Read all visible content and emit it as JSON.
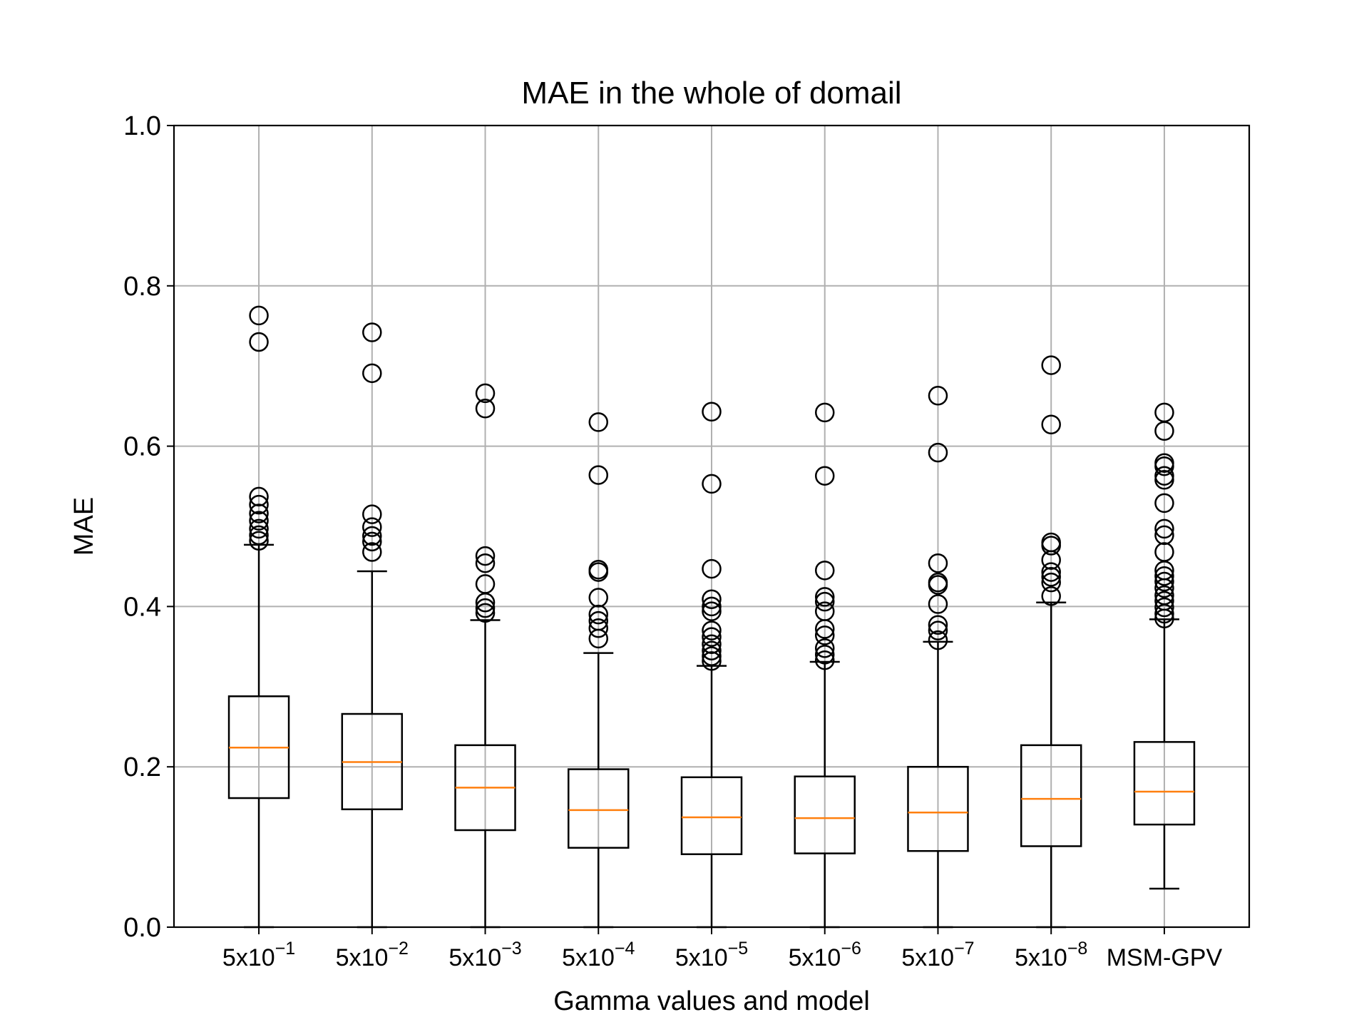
{
  "chart_data": {
    "type": "box",
    "title": "MAE in the whole of domail",
    "xlabel": "Gamma values and model",
    "ylabel": "MAE",
    "ylim": [
      0.0,
      1.0
    ],
    "yticks": [
      "0.0",
      "0.2",
      "0.4",
      "0.6",
      "0.8",
      "1.0"
    ],
    "grid": true,
    "categories": [
      {
        "base": "5x10",
        "sup": "−1"
      },
      {
        "base": "5x10",
        "sup": "−2"
      },
      {
        "base": "5x10",
        "sup": "−3"
      },
      {
        "base": "5x10",
        "sup": "−4"
      },
      {
        "base": "5x10",
        "sup": "−5"
      },
      {
        "base": "5x10",
        "sup": "−6"
      },
      {
        "base": "5x10",
        "sup": "−7"
      },
      {
        "base": "5x10",
        "sup": "−8"
      },
      {
        "base": "MSM-GPV",
        "sup": ""
      }
    ],
    "boxes": [
      {
        "whislo": 0.0,
        "q1": 0.161,
        "median": 0.224,
        "q3": 0.288,
        "whishi": 0.477,
        "fliers": [
          0.763,
          0.73,
          0.537,
          0.527,
          0.516,
          0.507,
          0.497,
          0.489,
          0.482
        ]
      },
      {
        "whislo": 0.0,
        "q1": 0.147,
        "median": 0.206,
        "q3": 0.266,
        "whishi": 0.444,
        "fliers": [
          0.742,
          0.691,
          0.515,
          0.499,
          0.488,
          0.481,
          0.468
        ]
      },
      {
        "whislo": 0.0,
        "q1": 0.121,
        "median": 0.174,
        "q3": 0.227,
        "whishi": 0.383,
        "fliers": [
          0.666,
          0.647,
          0.463,
          0.454,
          0.428,
          0.405,
          0.398,
          0.392
        ]
      },
      {
        "whislo": 0.0,
        "q1": 0.099,
        "median": 0.146,
        "q3": 0.197,
        "whishi": 0.342,
        "fliers": [
          0.63,
          0.564,
          0.446,
          0.443,
          0.411,
          0.39,
          0.382,
          0.373,
          0.36
        ]
      },
      {
        "whislo": 0.0,
        "q1": 0.091,
        "median": 0.137,
        "q3": 0.187,
        "whishi": 0.326,
        "fliers": [
          0.643,
          0.553,
          0.447,
          0.409,
          0.4,
          0.394,
          0.37,
          0.362,
          0.353,
          0.345,
          0.338,
          0.332
        ]
      },
      {
        "whislo": 0.0,
        "q1": 0.092,
        "median": 0.136,
        "q3": 0.188,
        "whishi": 0.331,
        "fliers": [
          0.642,
          0.563,
          0.445,
          0.412,
          0.406,
          0.394,
          0.372,
          0.364,
          0.348,
          0.34,
          0.333
        ]
      },
      {
        "whislo": 0.0,
        "q1": 0.095,
        "median": 0.143,
        "q3": 0.2,
        "whishi": 0.356,
        "fliers": [
          0.663,
          0.592,
          0.454,
          0.43,
          0.427,
          0.403,
          0.377,
          0.37,
          0.358
        ]
      },
      {
        "whislo": 0.0,
        "q1": 0.101,
        "median": 0.16,
        "q3": 0.227,
        "whishi": 0.405,
        "fliers": [
          0.701,
          0.627,
          0.48,
          0.476,
          0.458,
          0.443,
          0.437,
          0.43,
          0.413
        ]
      },
      {
        "whislo": 0.048,
        "q1": 0.128,
        "median": 0.169,
        "q3": 0.231,
        "whishi": 0.384,
        "fliers": [
          0.642,
          0.619,
          0.579,
          0.575,
          0.563,
          0.558,
          0.529,
          0.497,
          0.489,
          0.468,
          0.445,
          0.438,
          0.431,
          0.423,
          0.414,
          0.407,
          0.399,
          0.391,
          0.385
        ]
      }
    ]
  }
}
